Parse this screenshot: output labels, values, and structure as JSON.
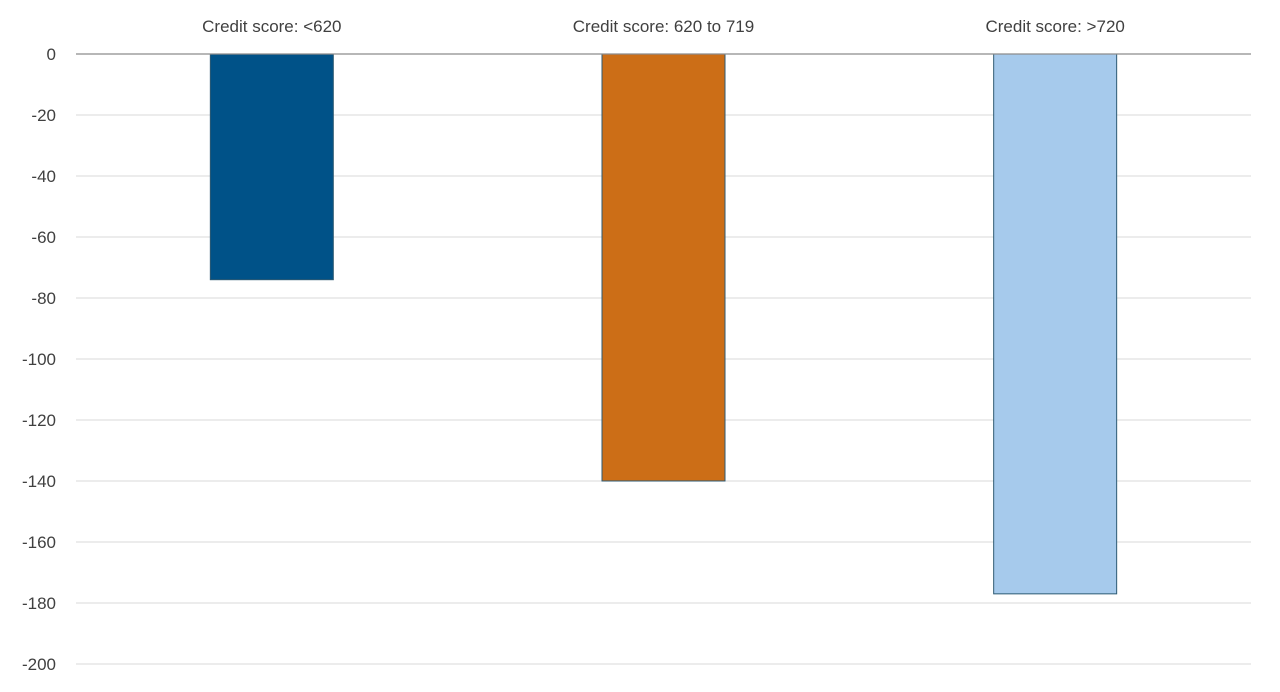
{
  "chart_data": {
    "type": "bar",
    "title": "",
    "xlabel": "",
    "ylabel": "",
    "categories": [
      "Credit score: <620",
      "Credit score: 620 to 719",
      "Credit score: >720"
    ],
    "values": [
      -74,
      -140,
      -177
    ],
    "colors": [
      "#005288",
      "#cc6e17",
      "#a6caec"
    ],
    "edge_color": "#2d5a73",
    "ylim": [
      -200,
      0
    ],
    "yticks": [
      0,
      -20,
      -40,
      -60,
      -80,
      -100,
      -120,
      -140,
      -160,
      -180,
      -200
    ],
    "ytick_labels": [
      "0",
      "-20",
      "-40",
      "-60",
      "-80",
      "-100",
      "-120",
      "-140",
      "-160",
      "-180",
      "-200"
    ],
    "category_labels_position": "top",
    "grid": true,
    "legend": "none"
  }
}
